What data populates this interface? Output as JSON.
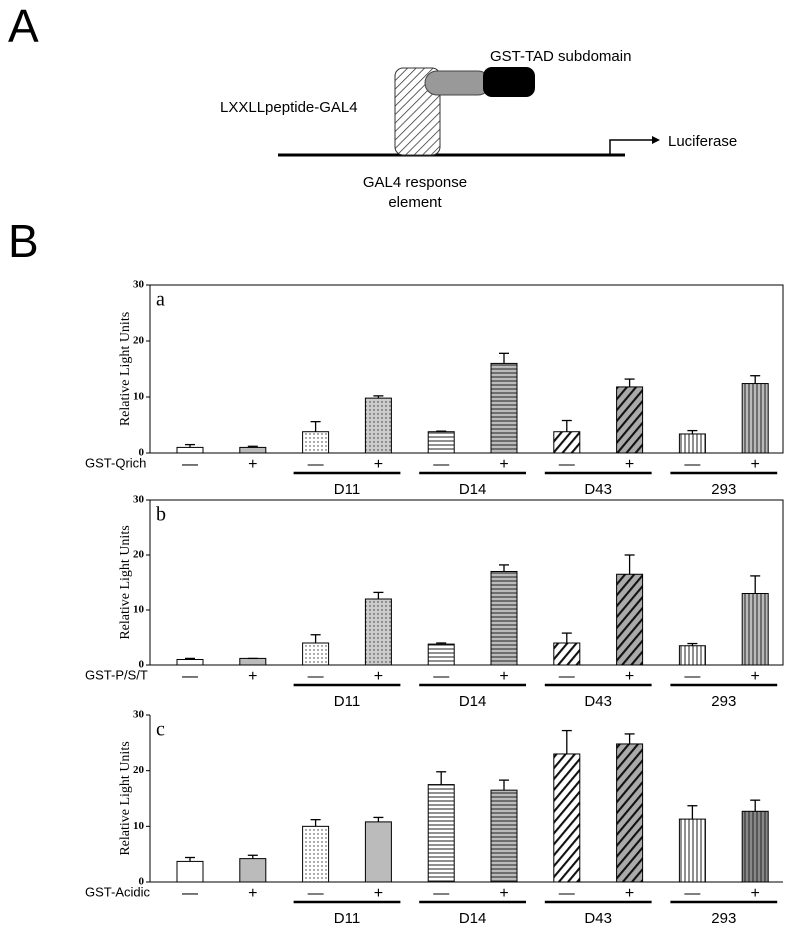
{
  "panel_a": {
    "label": "A",
    "tad": "GST-TAD subdomain",
    "peptide": "LXXLLpeptide-GAL4",
    "reporter": "Luciferase",
    "element": [
      "GAL4 response",
      "element"
    ]
  },
  "panel_b": {
    "label": "B"
  },
  "chart_data": [
    {
      "type": "bar",
      "label": "a",
      "ylabel": "Relative Light Units",
      "row_label": "GST-Qrich",
      "categories": [
        "—",
        "+",
        "—",
        "+",
        "—",
        "+",
        "—",
        "+",
        "—",
        "+"
      ],
      "groups": [
        "D11",
        "D14",
        "D43",
        "293"
      ],
      "values": [
        1,
        1,
        3.8,
        9.8,
        3.8,
        16,
        3.8,
        11.8,
        3.4,
        12.4
      ],
      "errors": [
        0.5,
        0.2,
        1.8,
        0.4,
        0.1,
        1.8,
        2,
        1.4,
        0.6,
        1.4
      ],
      "colors": [
        "#ffffff",
        "#bbbbbb",
        "#ffffff",
        "#cccccc",
        "#ffffff",
        "#bbbbbb",
        "#ffffff",
        "#aaaaaa",
        "#ffffff",
        "#bbbbbb"
      ],
      "patterns": [
        "none",
        "none",
        "dots",
        "dots",
        "hlines",
        "hlines",
        "diag",
        "diag",
        "vlines",
        "vlines"
      ],
      "ylim": [
        0,
        30
      ],
      "yticks": [
        0,
        10,
        20,
        30
      ],
      "frame": true
    },
    {
      "type": "bar",
      "label": "b",
      "ylabel": "Relative Light Units",
      "row_label": "GST-P/S/T",
      "categories": [
        "—",
        "+",
        "—",
        "+",
        "—",
        "+",
        "—",
        "+",
        "—",
        "+"
      ],
      "groups": [
        "D11",
        "D14",
        "D43",
        "293"
      ],
      "values": [
        1,
        1.2,
        4,
        12,
        3.8,
        17,
        4,
        16.5,
        3.5,
        13
      ],
      "errors": [
        0.2,
        0,
        1.5,
        1.2,
        0.2,
        1.2,
        1.8,
        3.5,
        0.4,
        3.2
      ],
      "colors": [
        "#ffffff",
        "#bbbbbb",
        "#ffffff",
        "#cccccc",
        "#ffffff",
        "#bbbbbb",
        "#ffffff",
        "#aaaaaa",
        "#ffffff",
        "#bbbbbb"
      ],
      "patterns": [
        "none",
        "none",
        "dots",
        "dots",
        "hlines",
        "hlines",
        "diag",
        "diag",
        "vlines",
        "vlines"
      ],
      "ylim": [
        0,
        30
      ],
      "yticks": [
        0,
        10,
        20,
        30
      ],
      "frame": true
    },
    {
      "type": "bar",
      "label": "c",
      "ylabel": "Relative Light Units",
      "row_label": "GST-Acidic",
      "categories": [
        "—",
        "+",
        "—",
        "+",
        "—",
        "+",
        "—",
        "+",
        "—",
        "+"
      ],
      "groups": [
        "D11",
        "D14",
        "D43",
        "293"
      ],
      "values": [
        3.7,
        4.2,
        10,
        10.8,
        17.5,
        16.5,
        23,
        24.8,
        11.3,
        12.7
      ],
      "errors": [
        0.7,
        0.6,
        1.2,
        0.8,
        2.3,
        1.8,
        4.2,
        1.8,
        2.4,
        2
      ],
      "colors": [
        "#ffffff",
        "#bbbbbb",
        "#ffffff",
        "#bbbbbb",
        "#ffffff",
        "#bbbbbb",
        "#ffffff",
        "#aaaaaa",
        "#ffffff",
        "#888888"
      ],
      "patterns": [
        "none",
        "none",
        "dots",
        "none",
        "hlines",
        "hlines",
        "diag",
        "diag",
        "vlines",
        "vlines"
      ],
      "ylim": [
        0,
        30
      ],
      "yticks": [
        0,
        10,
        20,
        30
      ],
      "frame": false
    }
  ]
}
